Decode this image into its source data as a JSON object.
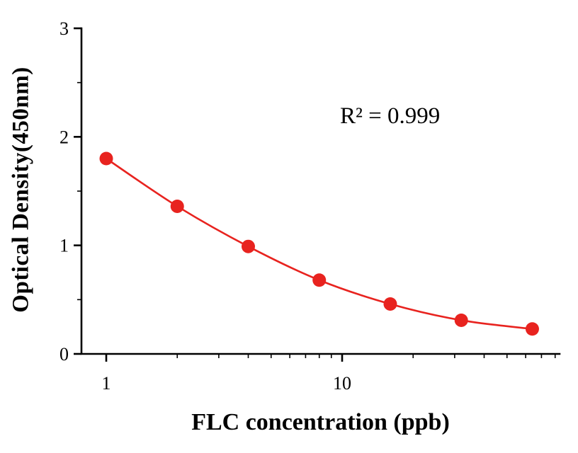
{
  "chart_data": {
    "type": "scatter-line",
    "title": "",
    "xlabel": "FLC concentration (ppb)",
    "ylabel": "Optical Density(450nm)",
    "annotation": "R² = 0.999",
    "xscale": "log",
    "xlim": [
      0.78,
      83
    ],
    "ylim": [
      0,
      3
    ],
    "x": [
      1,
      2,
      4,
      8,
      16,
      32,
      64
    ],
    "y": [
      1.8,
      1.36,
      0.99,
      0.68,
      0.46,
      0.31,
      0.23
    ],
    "x_major_ticks": [
      1,
      10
    ],
    "x_tick_labels": [
      "1",
      "10"
    ],
    "x_minor_ticks": [
      2,
      3,
      4,
      5,
      6,
      7,
      8,
      9,
      20,
      30,
      40,
      50,
      60,
      70,
      80
    ],
    "y_major_ticks": [
      0,
      1,
      2,
      3
    ],
    "y_tick_labels": [
      "0",
      "1",
      "2",
      "3"
    ],
    "y_minor_ticks": [
      0.5,
      1.5,
      2.5
    ],
    "line_color": "#e8231f",
    "marker_color": "#e8231f",
    "axis_color": "#000000",
    "grid": false,
    "legend": "none"
  }
}
